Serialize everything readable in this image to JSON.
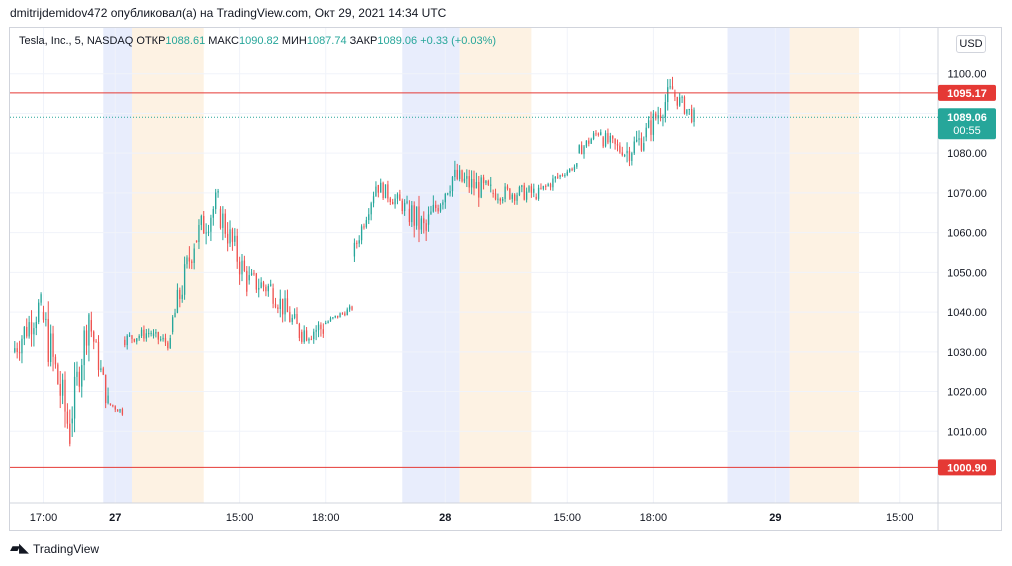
{
  "header": {
    "publish_text": "dmitrijdemidov472 опубликовал(а) на TradingView.com, Окт 29, 2021 14:34 UTC"
  },
  "legend": {
    "symbol": "Tesla, Inc., 5, NASDAQ",
    "open_label": "ОТКР",
    "open_value": "1088.61",
    "high_label": "МАКС",
    "high_value": "1090.82",
    "low_label": "МИН",
    "low_value": "1087.74",
    "close_label": "ЗАКР",
    "close_value": "1089.06",
    "change": "+0.33 (+0.03%)"
  },
  "currency_button": "USD",
  "footer": {
    "brand": "TradingView"
  },
  "colors": {
    "up": "#26a69a",
    "down": "#ef5350",
    "hline": "#e53935",
    "premarket": "#e8edfc",
    "postmarket": "#fdf2e3",
    "grid": "#f0f3fa"
  },
  "chart_data": {
    "type": "candlestick",
    "ylim": [
      1000,
      1110
    ],
    "y_ticks": [
      1010,
      1020,
      1030,
      1040,
      1050,
      1060,
      1070,
      1080,
      1090,
      1100
    ],
    "y_tick_labels": [
      "1010.00",
      "1020.00",
      "1030.00",
      "1040.00",
      "1050.00",
      "1060.00",
      "1070.00",
      "1080.00",
      "1090.00",
      "1100.00"
    ],
    "x_ticks": [
      {
        "label": "17:00",
        "t": 12
      },
      {
        "label": "27",
        "t": 42,
        "bold": true
      },
      {
        "label": "15:00",
        "t": 94
      },
      {
        "label": "18:00",
        "t": 130
      },
      {
        "label": "28",
        "t": 180,
        "bold": true
      },
      {
        "label": "15:00",
        "t": 231
      },
      {
        "label": "18:00",
        "t": 267
      },
      {
        "label": "29",
        "t": 318,
        "bold": true
      },
      {
        "label": "15:00",
        "t": 370
      }
    ],
    "x_range": [
      -2,
      386
    ],
    "sessions": [
      {
        "kind": "premarket",
        "start": 37,
        "end": 49
      },
      {
        "kind": "postmarket",
        "start": 49,
        "end": 79
      },
      {
        "kind": "premarket",
        "start": 162,
        "end": 186
      },
      {
        "kind": "postmarket",
        "start": 186,
        "end": 216
      },
      {
        "kind": "premarket",
        "start": 298,
        "end": 324
      },
      {
        "kind": "postmarket",
        "start": 324,
        "end": 353
      }
    ],
    "hlines": [
      {
        "value": 1095.17,
        "label": "1095.17",
        "style": "solid"
      },
      {
        "value": 1000.9,
        "label": "1000.90",
        "style": "solid"
      }
    ],
    "last_price": {
      "value": 1089.06,
      "label": "1089.06",
      "timer": "00:55"
    },
    "segments": [
      {
        "from": 0,
        "to": 12,
        "start": 1030,
        "end": 1042,
        "high": 1045,
        "low": 1022,
        "vol": 4
      },
      {
        "from": 12,
        "to": 24,
        "start": 1040,
        "end": 1010,
        "high": 1044,
        "low": 1001,
        "vol": 6
      },
      {
        "from": 24,
        "to": 32,
        "start": 1012,
        "end": 1040,
        "high": 1043,
        "low": 1006,
        "vol": 5
      },
      {
        "from": 32,
        "to": 40,
        "start": 1038,
        "end": 1017,
        "high": 1041,
        "low": 1014,
        "vol": 3
      },
      {
        "from": 40,
        "to": 46,
        "start": 1017,
        "end": 1015,
        "high": 1019,
        "low": 1013,
        "vol": 1
      },
      {
        "from": 46,
        "to": 58,
        "start": 1033,
        "end": 1035,
        "high": 1038,
        "low": 1030,
        "vol": 1.5
      },
      {
        "from": 58,
        "to": 66,
        "start": 1034,
        "end": 1032,
        "high": 1036,
        "low": 1030,
        "vol": 1.5
      },
      {
        "from": 66,
        "to": 76,
        "start": 1035,
        "end": 1058,
        "high": 1063,
        "low": 1033,
        "vol": 4
      },
      {
        "from": 76,
        "to": 86,
        "start": 1058,
        "end": 1068,
        "high": 1071,
        "low": 1052,
        "vol": 4
      },
      {
        "from": 86,
        "to": 98,
        "start": 1066,
        "end": 1048,
        "high": 1068,
        "low": 1044,
        "vol": 4
      },
      {
        "from": 98,
        "to": 108,
        "start": 1048,
        "end": 1046,
        "high": 1054,
        "low": 1040,
        "vol": 3
      },
      {
        "from": 108,
        "to": 120,
        "start": 1046,
        "end": 1035,
        "high": 1048,
        "low": 1031,
        "vol": 3
      },
      {
        "from": 120,
        "to": 130,
        "start": 1035,
        "end": 1036,
        "high": 1043,
        "low": 1032,
        "vol": 3
      },
      {
        "from": 130,
        "to": 142,
        "start": 1037,
        "end": 1041,
        "high": 1043,
        "low": 1035,
        "vol": 0.8
      },
      {
        "from": 142,
        "to": 152,
        "start": 1054,
        "end": 1072,
        "high": 1077,
        "low": 1050,
        "vol": 2
      },
      {
        "from": 152,
        "to": 165,
        "start": 1072,
        "end": 1066,
        "high": 1074,
        "low": 1063,
        "vol": 2
      },
      {
        "from": 165,
        "to": 173,
        "start": 1066,
        "end": 1060,
        "high": 1081,
        "low": 1055,
        "vol": 4
      },
      {
        "from": 173,
        "to": 184,
        "start": 1062,
        "end": 1074,
        "high": 1078,
        "low": 1060,
        "vol": 3
      },
      {
        "from": 184,
        "to": 200,
        "start": 1074,
        "end": 1070,
        "high": 1080,
        "low": 1064,
        "vol": 3
      },
      {
        "from": 200,
        "to": 218,
        "start": 1070,
        "end": 1070,
        "high": 1075,
        "low": 1067,
        "vol": 2
      },
      {
        "from": 218,
        "to": 228,
        "start": 1069,
        "end": 1074,
        "high": 1078,
        "low": 1068,
        "vol": 1.5
      },
      {
        "from": 228,
        "to": 236,
        "start": 1074,
        "end": 1077,
        "high": 1078,
        "low": 1073,
        "vol": 0.8
      },
      {
        "from": 236,
        "to": 246,
        "start": 1080,
        "end": 1086,
        "high": 1087,
        "low": 1077,
        "vol": 1.5
      },
      {
        "from": 246,
        "to": 256,
        "start": 1084,
        "end": 1080,
        "high": 1088,
        "low": 1079,
        "vol": 2
      },
      {
        "from": 256,
        "to": 264,
        "start": 1080,
        "end": 1084,
        "high": 1088,
        "low": 1074,
        "vol": 3
      },
      {
        "from": 264,
        "to": 276,
        "start": 1084,
        "end": 1096,
        "high": 1100,
        "low": 1083,
        "vol": 3
      },
      {
        "from": 276,
        "to": 285,
        "start": 1095,
        "end": 1089,
        "high": 1096,
        "low": 1084,
        "vol": 2
      }
    ]
  }
}
